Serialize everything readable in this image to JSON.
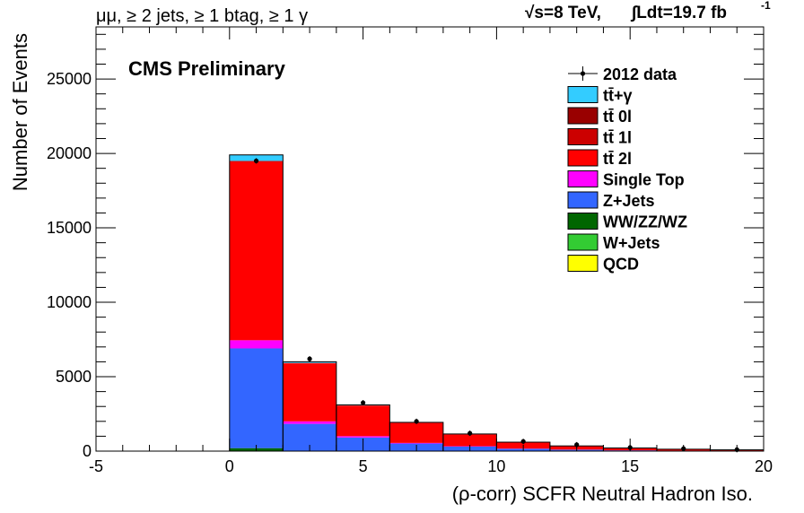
{
  "chart_data": {
    "type": "bar",
    "subtype": "stacked-histogram",
    "title_left": "μμ, ≥ 2 jets, ≥ 1 btag, ≥ 1 γ",
    "title_right_energy": "√s=8 TeV,",
    "title_right_lumi": "∫Ldt=19.7 fb",
    "title_right_lumi_exp": "-1",
    "label": "CMS Preliminary",
    "xlabel": "(ρ-corr) SCFR Neutral Hadron Iso.",
    "ylabel": "Number of Events",
    "xlim": [
      -5,
      20
    ],
    "ylim": [
      0,
      28500
    ],
    "xticks": [
      -5,
      0,
      5,
      10,
      15,
      20
    ],
    "yticks": [
      0,
      5000,
      10000,
      15000,
      20000,
      25000
    ],
    "bin_edges": [
      0,
      2,
      4,
      6,
      8,
      10,
      12,
      14,
      16,
      18,
      20
    ],
    "series": [
      {
        "name": "QCD",
        "color": "#ffff00",
        "values": [
          0,
          0,
          0,
          0,
          0,
          0,
          0,
          0,
          0,
          0
        ]
      },
      {
        "name": "W+Jets",
        "color": "#33cc33",
        "values": [
          30,
          5,
          3,
          2,
          1,
          1,
          0,
          0,
          0,
          0
        ]
      },
      {
        "name": "WW/ZZ/WZ",
        "color": "#006600",
        "values": [
          170,
          25,
          12,
          8,
          5,
          3,
          2,
          1,
          1,
          1
        ]
      },
      {
        "name": "Z+Jets",
        "color": "#3366ff",
        "values": [
          6700,
          1800,
          900,
          500,
          300,
          150,
          90,
          50,
          30,
          20
        ]
      },
      {
        "name": "Single Top",
        "color": "#ff00ff",
        "values": [
          550,
          170,
          90,
          40,
          25,
          15,
          10,
          6,
          4,
          3
        ]
      },
      {
        "name": "tt̄ 2l",
        "color": "#ff0000",
        "values": [
          11980,
          3900,
          2050,
          1350,
          800,
          420,
          240,
          150,
          90,
          60
        ]
      },
      {
        "name": "tt̄ 1l",
        "color": "#cc0000",
        "values": [
          60,
          20,
          10,
          6,
          4,
          3,
          2,
          1,
          1,
          1
        ]
      },
      {
        "name": "tt̄ 0l",
        "color": "#990000",
        "values": [
          10,
          3,
          2,
          1,
          1,
          1,
          0,
          0,
          0,
          0
        ]
      },
      {
        "name": "tt̄+γ",
        "color": "#33ccff",
        "values": [
          400,
          80,
          40,
          25,
          15,
          8,
          5,
          3,
          2,
          1
        ]
      }
    ],
    "data": {
      "name": "2012 data",
      "x": [
        1,
        3,
        5,
        7,
        9,
        11,
        13,
        15,
        17,
        19
      ],
      "y": [
        19500,
        6200,
        3250,
        2000,
        1200,
        650,
        430,
        240,
        170,
        100
      ]
    },
    "legend_order": [
      "2012 data",
      "tt̄+γ",
      "tt̄ 0l",
      "tt̄ 1l",
      "tt̄ 2l",
      "Single Top",
      "Z+Jets",
      "WW/ZZ/WZ",
      "W+Jets",
      "QCD"
    ],
    "legend_position": "top-right",
    "grid": false
  }
}
